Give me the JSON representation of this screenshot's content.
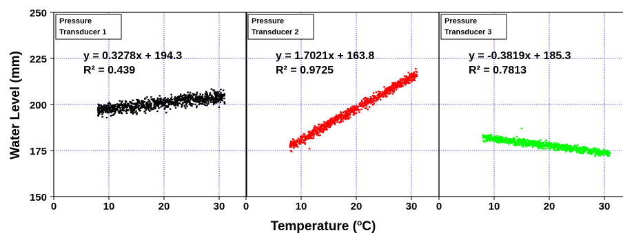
{
  "chart_data": {
    "type": "scatter",
    "ylabel": "Water Level (mm)",
    "xlabel_prefix": "Temperature (",
    "xlabel_unit_sup": "o",
    "xlabel_suffix": "C)",
    "ylim": [
      150,
      250
    ],
    "yticks": [
      "150",
      "175",
      "200",
      "225",
      "250"
    ],
    "xlim": [
      0,
      35
    ],
    "xticks": [
      "0",
      "10",
      "20",
      "30"
    ],
    "grid": true,
    "panels": [
      {
        "legend": [
          "Pressure",
          "Transducer 1"
        ],
        "equation": "y = 0.3278x + 194.3",
        "r2": "R² = 0.439",
        "color": "#000000",
        "slope": 0.3278,
        "intercept": 194.3,
        "x_range": [
          8,
          31
        ],
        "spread": 3.0,
        "points": [
          [
            8.0,
            197.0
          ],
          [
            8.5,
            196.5
          ],
          [
            9.0,
            198.5
          ],
          [
            9.5,
            197.5
          ],
          [
            10.0,
            199.0
          ],
          [
            10.5,
            196.0
          ],
          [
            11.0,
            199.5
          ],
          [
            11.5,
            198.0
          ],
          [
            12.0,
            200.0
          ],
          [
            12.5,
            198.5
          ],
          [
            13.0,
            200.5
          ],
          [
            13.5,
            197.0
          ],
          [
            14.0,
            201.0
          ],
          [
            15.0,
            199.5
          ],
          [
            16.0,
            201.5
          ],
          [
            17.0,
            200.0
          ],
          [
            18.0,
            202.5
          ],
          [
            19.0,
            201.0
          ],
          [
            20.0,
            203.0
          ],
          [
            21.0,
            201.5
          ],
          [
            22.0,
            204.0
          ],
          [
            23.0,
            202.0
          ],
          [
            24.0,
            205.0
          ],
          [
            25.0,
            203.5
          ],
          [
            26.0,
            206.5
          ],
          [
            27.0,
            204.0
          ],
          [
            28.0,
            202.0
          ],
          [
            29.0,
            200.0
          ],
          [
            30.0,
            198.5
          ],
          [
            31.0,
            201.0
          ]
        ]
      },
      {
        "legend": [
          "Pressure",
          "Transducer 2"
        ],
        "equation": "y = 1.7021x + 163.8",
        "r2": "R² = 0.9725",
        "color": "#ff0000",
        "slope": 1.7021,
        "intercept": 163.8,
        "x_range": [
          8,
          31
        ],
        "spread": 2.2,
        "points": [
          [
            8.0,
            178.0
          ],
          [
            9.0,
            179.5
          ],
          [
            10.0,
            180.0
          ],
          [
            11.0,
            182.0
          ],
          [
            11.5,
            176.0
          ],
          [
            12.0,
            184.0
          ],
          [
            13.0,
            186.5
          ],
          [
            14.0,
            188.0
          ],
          [
            15.0,
            190.5
          ],
          [
            16.0,
            191.0
          ],
          [
            17.0,
            193.0
          ],
          [
            18.0,
            195.0
          ],
          [
            19.0,
            196.5
          ],
          [
            20.0,
            198.0
          ],
          [
            21.0,
            200.0
          ],
          [
            22.0,
            201.5
          ],
          [
            23.0,
            203.0
          ],
          [
            24.0,
            205.0
          ],
          [
            25.0,
            206.5
          ],
          [
            26.0,
            208.0
          ],
          [
            27.0,
            209.5
          ],
          [
            28.0,
            211.0
          ],
          [
            29.0,
            212.5
          ],
          [
            30.0,
            214.0
          ],
          [
            31.0,
            216.0
          ]
        ]
      },
      {
        "legend": [
          "Pressure",
          "Transducer 3"
        ],
        "equation": "y = -0.3819x + 185.3",
        "r2": "R² = 0.7813",
        "color": "#00ff00",
        "slope": -0.3819,
        "intercept": 185.3,
        "x_range": [
          8,
          31
        ],
        "spread": 1.5,
        "points": [
          [
            8.0,
            183.5
          ],
          [
            9.0,
            182.0
          ],
          [
            10.0,
            181.5
          ],
          [
            11.0,
            180.5
          ],
          [
            12.0,
            180.0
          ],
          [
            13.0,
            179.0
          ],
          [
            14.0,
            178.5
          ],
          [
            15.0,
            187.0
          ],
          [
            16.0,
            177.5
          ],
          [
            17.0,
            177.0
          ],
          [
            18.0,
            176.5
          ],
          [
            19.0,
            176.0
          ],
          [
            20.0,
            175.5
          ],
          [
            21.0,
            175.0
          ],
          [
            22.0,
            176.0
          ],
          [
            23.0,
            174.5
          ],
          [
            24.0,
            175.5
          ],
          [
            25.0,
            174.0
          ],
          [
            26.0,
            175.0
          ],
          [
            27.0,
            173.5
          ],
          [
            28.0,
            174.5
          ],
          [
            29.0,
            173.0
          ],
          [
            30.0,
            174.0
          ],
          [
            31.0,
            173.5
          ]
        ]
      }
    ]
  }
}
